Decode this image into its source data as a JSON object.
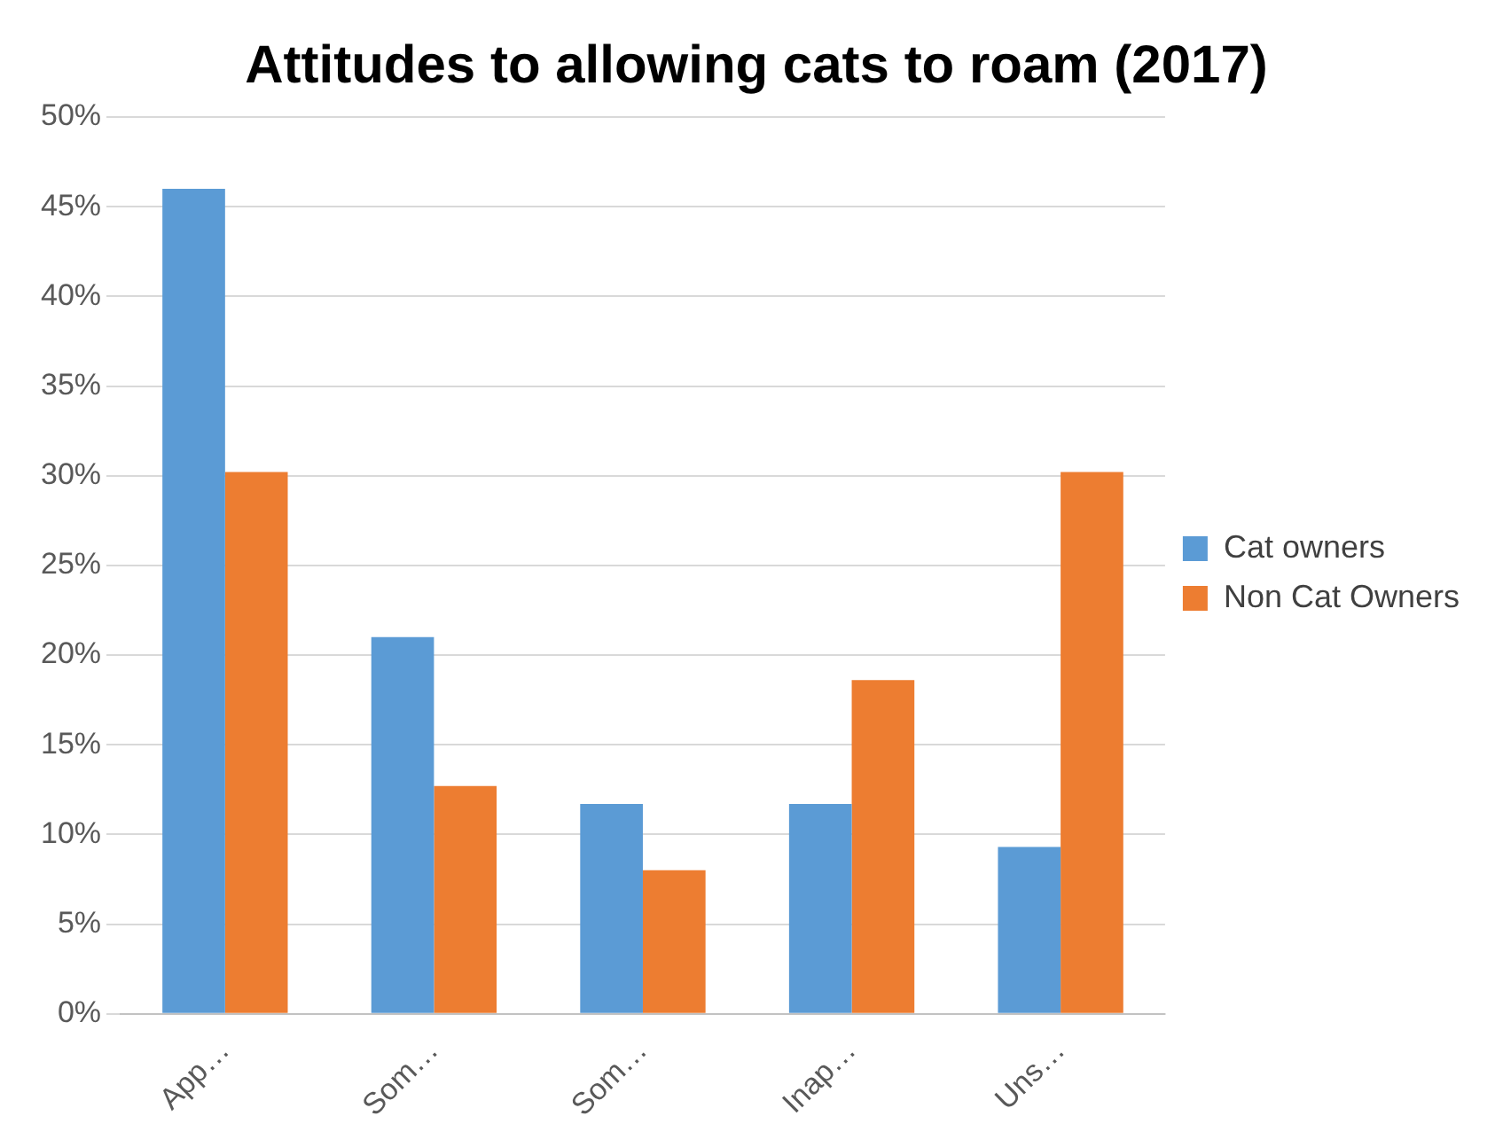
{
  "chart_data": {
    "type": "bar",
    "title": "Attitudes to allowing cats to roam (2017)",
    "categories": [
      "App…",
      "Som…",
      "Som…",
      "Inap…",
      "Uns…"
    ],
    "series": [
      {
        "name": "Cat owners",
        "color": "#5b9bd5",
        "values": [
          46,
          21,
          11.7,
          11.7,
          9.3
        ]
      },
      {
        "name": "Non Cat Owners",
        "color": "#ed7d31",
        "values": [
          30.2,
          12.7,
          8,
          18.6,
          30.2
        ]
      }
    ],
    "ylim": [
      0,
      50
    ],
    "yticks": [
      {
        "value": 0,
        "label": "0%"
      },
      {
        "value": 5,
        "label": "5%"
      },
      {
        "value": 10,
        "label": "10%"
      },
      {
        "value": 15,
        "label": "15%"
      },
      {
        "value": 20,
        "label": "20%"
      },
      {
        "value": 25,
        "label": "25%"
      },
      {
        "value": 30,
        "label": "30%"
      },
      {
        "value": 35,
        "label": "35%"
      },
      {
        "value": 40,
        "label": "40%"
      },
      {
        "value": 45,
        "label": "45%"
      },
      {
        "value": 50,
        "label": "50%"
      }
    ],
    "grid": "y",
    "legend": "right"
  }
}
